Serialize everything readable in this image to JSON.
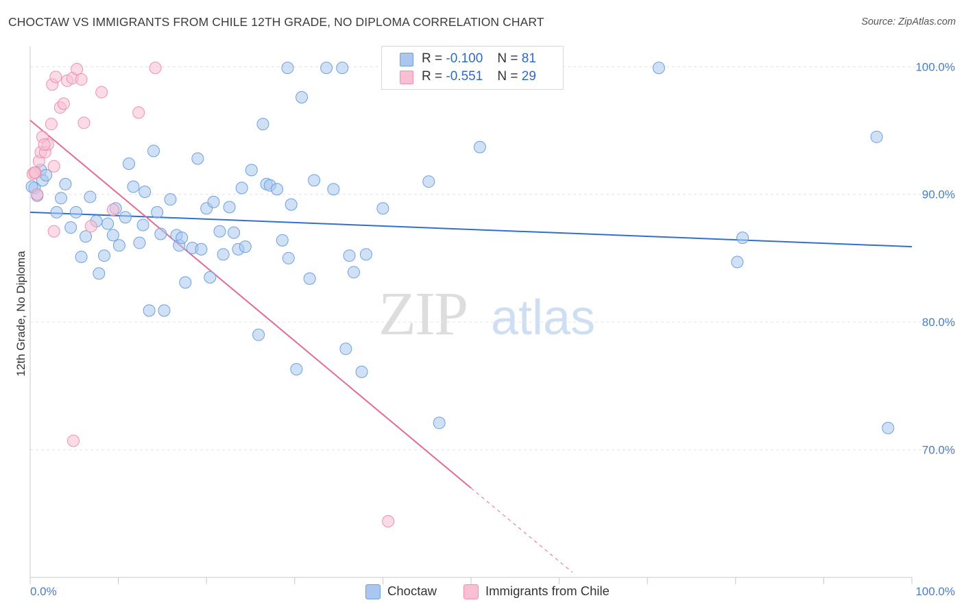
{
  "title": "CHOCTAW VS IMMIGRANTS FROM CHILE 12TH GRADE, NO DIPLOMA CORRELATION CHART",
  "source": "Source: ZipAtlas.com",
  "watermark": {
    "zip": "ZIP",
    "atlas": "atlas"
  },
  "legend": {
    "r_label": "R =",
    "n_label": "N =",
    "rows": [
      {
        "r": "-0.100",
        "n": "81",
        "color": "#aac8ef",
        "border": "#6c9fe0"
      },
      {
        "r": "-0.551",
        "n": "29",
        "color": "#f8c0d2",
        "border": "#ee8fb0"
      }
    ]
  },
  "bottom_legend": [
    {
      "label": "Choctaw",
      "color": "#aac8ef",
      "border": "#6c9fe0"
    },
    {
      "label": "Immigrants from Chile",
      "color": "#f8c0d2",
      "border": "#ee8fb0"
    }
  ],
  "chart_data": {
    "type": "scatter",
    "title": "CHOCTAW VS IMMIGRANTS FROM CHILE 12TH GRADE, NO DIPLOMA CORRELATION CHART",
    "xlabel": "",
    "ylabel": "12th Grade, No Diploma",
    "xlim": [
      0,
      100
    ],
    "ylim": [
      60,
      102
    ],
    "x_tick_labels": [
      "0.0%",
      "100.0%"
    ],
    "y_ticks": [
      70,
      80,
      90,
      100
    ],
    "y_tick_labels": [
      "70.0%",
      "80.0%",
      "90.0%",
      "100.0%"
    ],
    "grid": true,
    "legend_position": "top-center",
    "series": [
      {
        "name": "Choctaw",
        "color": "#6c9fe0",
        "fill": "#aac8ef",
        "line_color": "#2e6fcf",
        "trend": {
          "x": [
            0,
            100
          ],
          "y": [
            88.6,
            85.9
          ]
        },
        "points": [
          [
            0.5,
            90.5
          ],
          [
            0.8,
            89.9
          ],
          [
            1.2,
            91.9
          ],
          [
            1.4,
            91.1
          ],
          [
            1.8,
            91.5
          ],
          [
            3.0,
            88.6
          ],
          [
            3.5,
            89.7
          ],
          [
            4.0,
            90.8
          ],
          [
            4.6,
            87.4
          ],
          [
            5.2,
            88.6
          ],
          [
            5.8,
            85.1
          ],
          [
            6.3,
            86.7
          ],
          [
            6.8,
            89.8
          ],
          [
            7.5,
            87.9
          ],
          [
            7.8,
            83.8
          ],
          [
            8.4,
            85.2
          ],
          [
            8.8,
            87.7
          ],
          [
            9.4,
            86.8
          ],
          [
            9.7,
            88.9
          ],
          [
            10.1,
            86.0
          ],
          [
            10.8,
            88.2
          ],
          [
            11.2,
            92.4
          ],
          [
            11.7,
            90.6
          ],
          [
            12.4,
            86.2
          ],
          [
            12.8,
            87.6
          ],
          [
            13.0,
            90.2
          ],
          [
            13.5,
            80.9
          ],
          [
            14.0,
            93.4
          ],
          [
            14.4,
            88.6
          ],
          [
            14.8,
            86.9
          ],
          [
            15.2,
            80.9
          ],
          [
            15.9,
            89.6
          ],
          [
            16.6,
            86.8
          ],
          [
            16.9,
            86.0
          ],
          [
            17.2,
            86.6
          ],
          [
            17.6,
            83.1
          ],
          [
            18.4,
            85.8
          ],
          [
            19.0,
            92.8
          ],
          [
            19.4,
            85.7
          ],
          [
            20.0,
            88.9
          ],
          [
            20.4,
            83.5
          ],
          [
            20.8,
            89.4
          ],
          [
            21.5,
            87.1
          ],
          [
            21.9,
            85.3
          ],
          [
            22.6,
            89.0
          ],
          [
            23.1,
            87.0
          ],
          [
            23.6,
            85.7
          ],
          [
            24.0,
            90.5
          ],
          [
            24.4,
            85.9
          ],
          [
            25.1,
            91.9
          ],
          [
            25.9,
            79.0
          ],
          [
            26.4,
            95.5
          ],
          [
            26.8,
            90.8
          ],
          [
            27.2,
            90.7
          ],
          [
            28.0,
            90.4
          ],
          [
            28.6,
            86.4
          ],
          [
            29.3,
            85.0
          ],
          [
            29.6,
            89.2
          ],
          [
            30.2,
            76.3
          ],
          [
            30.8,
            97.6
          ],
          [
            29.2,
            99.9
          ],
          [
            31.7,
            83.4
          ],
          [
            32.2,
            91.1
          ],
          [
            33.6,
            99.9
          ],
          [
            34.4,
            90.4
          ],
          [
            35.4,
            99.9
          ],
          [
            35.8,
            77.9
          ],
          [
            36.2,
            85.2
          ],
          [
            36.7,
            83.9
          ],
          [
            37.6,
            76.1
          ],
          [
            38.1,
            85.3
          ],
          [
            40.0,
            88.9
          ],
          [
            45.2,
            91.0
          ],
          [
            46.4,
            72.1
          ],
          [
            51.0,
            93.7
          ],
          [
            71.3,
            99.9
          ],
          [
            80.2,
            84.7
          ],
          [
            80.8,
            86.6
          ],
          [
            96.0,
            94.5
          ],
          [
            97.3,
            71.7
          ],
          [
            0.2,
            90.6
          ]
        ]
      },
      {
        "name": "Immigrants from Chile",
        "color": "#ee8fb0",
        "fill": "#f8c0d2",
        "line_color": "#e36a95",
        "trend": {
          "x": [
            0,
            50
          ],
          "y": [
            95.8,
            67.0
          ]
        },
        "trend_dashed": {
          "x": [
            50,
            61.5
          ],
          "y": [
            67.0,
            60.4
          ]
        },
        "points": [
          [
            0.3,
            91.6
          ],
          [
            0.6,
            91.7
          ],
          [
            0.8,
            90.0
          ],
          [
            1.0,
            92.6
          ],
          [
            1.2,
            93.3
          ],
          [
            1.4,
            94.5
          ],
          [
            1.7,
            93.3
          ],
          [
            2.0,
            93.9
          ],
          [
            2.4,
            95.5
          ],
          [
            2.7,
            92.2
          ],
          [
            2.5,
            98.6
          ],
          [
            2.9,
            99.2
          ],
          [
            3.4,
            96.8
          ],
          [
            3.8,
            97.1
          ],
          [
            4.2,
            98.9
          ],
          [
            4.8,
            99.1
          ],
          [
            5.3,
            99.8
          ],
          [
            5.8,
            99.0
          ],
          [
            6.1,
            95.6
          ],
          [
            6.9,
            87.5
          ],
          [
            8.1,
            98.0
          ],
          [
            9.4,
            88.8
          ],
          [
            12.3,
            96.4
          ],
          [
            14.2,
            99.9
          ],
          [
            2.7,
            87.1
          ],
          [
            4.9,
            70.7
          ],
          [
            40.6,
            64.4
          ],
          [
            0.5,
            91.7
          ],
          [
            1.6,
            93.9
          ]
        ]
      }
    ]
  }
}
